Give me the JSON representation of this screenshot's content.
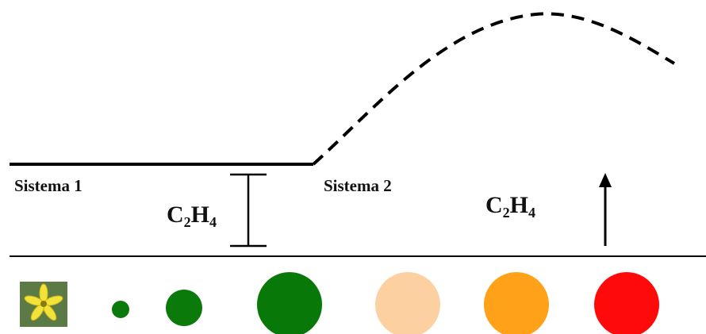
{
  "system_1": {
    "label": "Sistema 1",
    "ethylene": "C₂H₄"
  },
  "system_2": {
    "label": "Sistema 2",
    "ethylene": "C₂H₄"
  }
}
